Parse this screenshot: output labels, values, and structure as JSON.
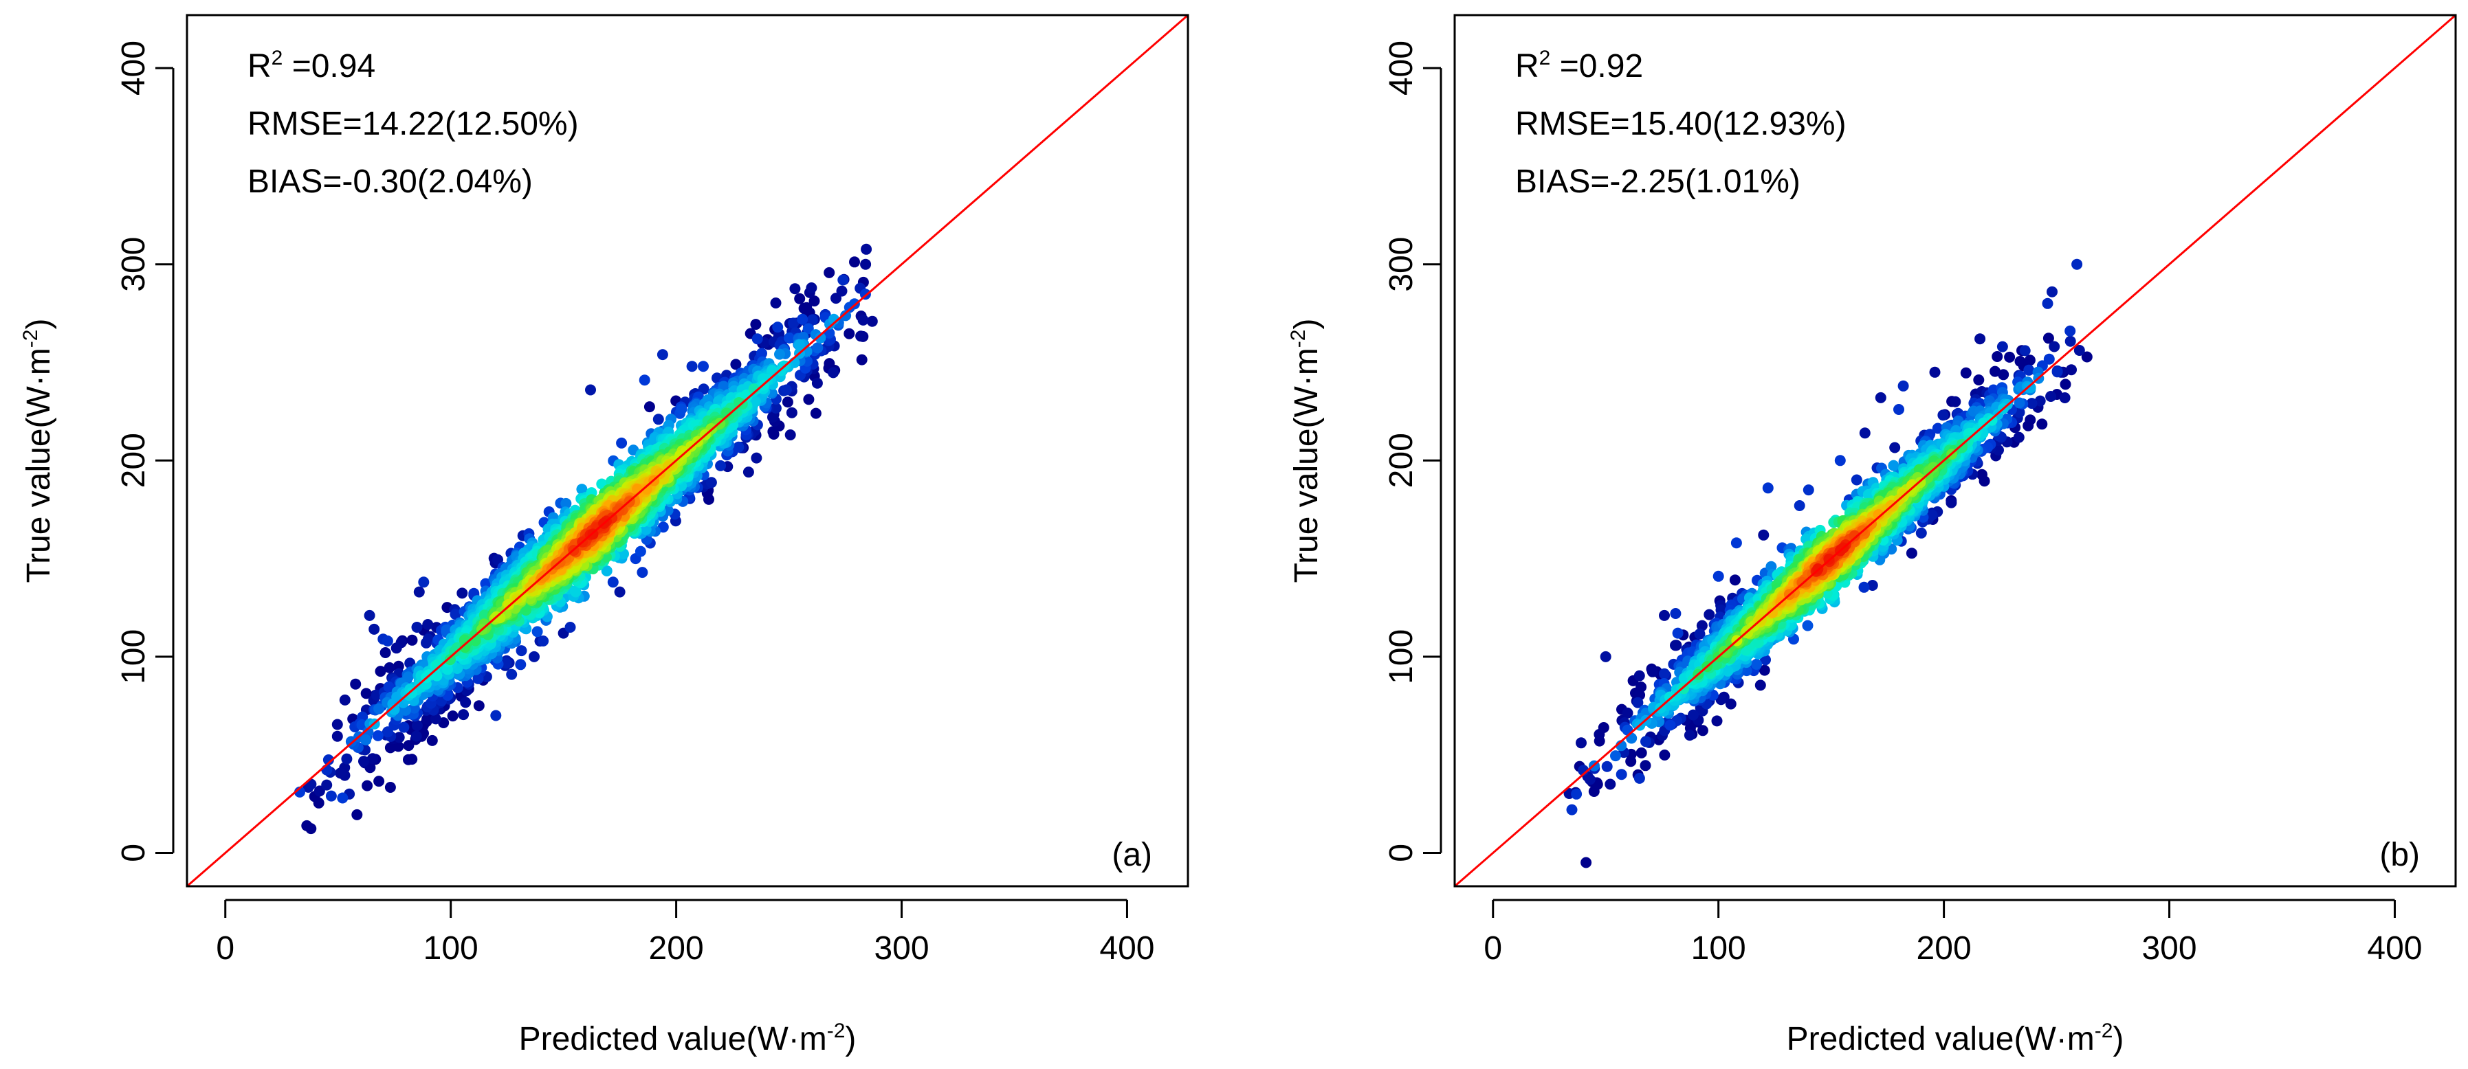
{
  "figure": {
    "colors": {
      "background": "#ffffff",
      "axes": "#000000",
      "reference_line": "#ff0000",
      "density_low": "#00008b",
      "density_high": "#ff0000"
    }
  },
  "chart_data": [
    {
      "type": "scatter",
      "panel_label": "(a)",
      "title": "",
      "xlabel": "Predicted value(W·m",
      "xlabel_sup": "-2",
      "xlabel_tail": ")",
      "ylabel": "True value(W·m",
      "ylabel_sup": "-2",
      "ylabel_tail": ")",
      "xlim": [
        -17,
        427
      ],
      "ylim": [
        -17,
        427
      ],
      "xticks": [
        0,
        100,
        200,
        300,
        400
      ],
      "yticks": [
        0,
        100,
        200,
        300,
        400
      ],
      "xtick_labels": [
        "0",
        "100",
        "200",
        "300",
        "400"
      ],
      "ytick_labels": [
        "0",
        "100",
        "200",
        "300",
        "400"
      ],
      "reference_line": "1:1",
      "color_by": "point density (blue = low, red = high)",
      "stats": {
        "r2_label": "R",
        "r2_sup": "2",
        "r2_value": " =0.94",
        "rmse": "RMSE=14.22(12.50%)",
        "bias": "BIAS=-0.30(2.04%)"
      },
      "density_model": {
        "x_range": [
          33,
          285
        ],
        "center": [
          165,
          165
        ],
        "slope": 1.0,
        "spread": 9,
        "n_points": 2600
      },
      "outliers": [
        [
          33,
          31
        ],
        [
          38,
          35
        ],
        [
          47,
          29
        ],
        [
          52,
          28
        ],
        [
          55,
          30
        ],
        [
          64,
          121
        ],
        [
          66,
          114
        ],
        [
          70,
          109
        ],
        [
          72,
          108
        ],
        [
          86,
          133
        ],
        [
          88,
          138
        ],
        [
          85,
          115
        ],
        [
          90,
          109
        ],
        [
          92,
          80
        ],
        [
          83,
          73
        ],
        [
          120,
          70
        ],
        [
          127,
          91
        ],
        [
          131,
          96
        ],
        [
          137,
          100
        ],
        [
          141,
          108
        ],
        [
          150,
          112
        ],
        [
          153,
          115
        ],
        [
          162,
          236
        ],
        [
          172,
          138
        ],
        [
          175,
          133
        ],
        [
          182,
          150
        ],
        [
          185,
          143
        ],
        [
          186,
          241
        ],
        [
          194,
          254
        ],
        [
          207,
          248
        ],
        [
          212,
          248
        ],
        [
          236,
          262
        ],
        [
          245,
          268
        ],
        [
          252,
          270
        ],
        [
          256,
          272
        ],
        [
          260,
          288
        ],
        [
          274,
          292
        ],
        [
          284,
          300
        ],
        [
          258,
          265
        ],
        [
          248,
          257
        ]
      ]
    },
    {
      "type": "scatter",
      "panel_label": "(b)",
      "title": "",
      "xlabel": "Predicted value(W·m",
      "xlabel_sup": "-2",
      "xlabel_tail": ")",
      "ylabel": "True value(W·m",
      "ylabel_sup": "-2",
      "ylabel_tail": ")",
      "xlim": [
        -17,
        427
      ],
      "ylim": [
        -17,
        427
      ],
      "xticks": [
        0,
        100,
        200,
        300,
        400
      ],
      "yticks": [
        0,
        100,
        200,
        300,
        400
      ],
      "xtick_labels": [
        "0",
        "100",
        "200",
        "300",
        "400"
      ],
      "ytick_labels": [
        "0",
        "100",
        "200",
        "300",
        "400"
      ],
      "reference_line": "1:1",
      "color_by": "point density (blue = low, red = high)",
      "stats": {
        "r2_label": "R",
        "r2_sup": "2",
        "r2_value": " =0.92",
        "rmse": "RMSE=15.40(12.93%)",
        "bias": "BIAS=-2.25(1.01%)"
      },
      "density_model": {
        "x_range": [
          35,
          260
        ],
        "center": [
          150,
          150
        ],
        "slope": 1.0,
        "spread": 8,
        "n_points": 2300
      },
      "outliers": [
        [
          35,
          22
        ],
        [
          37,
          30
        ],
        [
          42,
          39
        ],
        [
          45,
          43
        ],
        [
          50,
          100
        ],
        [
          52,
          35
        ],
        [
          57,
          40
        ],
        [
          65,
          38
        ],
        [
          76,
          121
        ],
        [
          81,
          122
        ],
        [
          82,
          112
        ],
        [
          98,
          99
        ],
        [
          100,
          141
        ],
        [
          104,
          106
        ],
        [
          108,
          158
        ],
        [
          112,
          117
        ],
        [
          120,
          162
        ],
        [
          122,
          186
        ],
        [
          124,
          132
        ],
        [
          136,
          177
        ],
        [
          140,
          185
        ],
        [
          154,
          200
        ],
        [
          158,
          180
        ],
        [
          165,
          214
        ],
        [
          172,
          232
        ],
        [
          180,
          226
        ],
        [
          182,
          238
        ],
        [
          190,
          163
        ],
        [
          196,
          245
        ],
        [
          204,
          195
        ],
        [
          216,
          262
        ],
        [
          222,
          236
        ],
        [
          226,
          258
        ],
        [
          230,
          226
        ],
        [
          236,
          256
        ],
        [
          246,
          280
        ],
        [
          248,
          286
        ],
        [
          252,
          245
        ],
        [
          256,
          266
        ],
        [
          259,
          300
        ]
      ]
    }
  ]
}
